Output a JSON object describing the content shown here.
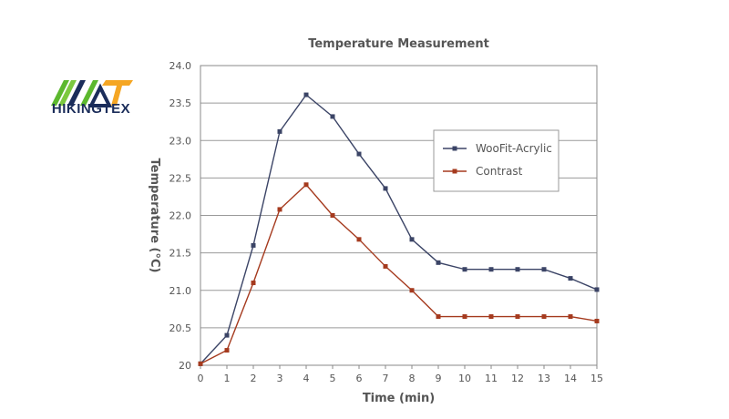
{
  "brand": {
    "name": "HIKINGTEX",
    "colors": {
      "green": "#5cb82e",
      "blue": "#1b2d5a",
      "orange": "#f5a623"
    }
  },
  "chart_data": {
    "type": "line",
    "title": "Temperature Measurement",
    "xlabel": "Time (min)",
    "ylabel": "Temperature (°C)",
    "x": [
      0,
      1,
      2,
      3,
      4,
      5,
      6,
      7,
      8,
      9,
      10,
      11,
      12,
      13,
      14,
      15
    ],
    "xlim": [
      0,
      15
    ],
    "ylim": [
      20,
      24
    ],
    "xticks": [
      "0",
      "1",
      "2",
      "3",
      "4",
      "5",
      "6",
      "7",
      "8",
      "9",
      "10",
      "11",
      "12",
      "13",
      "14",
      "15"
    ],
    "yticks": [
      "20",
      "20.5",
      "21.0",
      "21.5",
      "22.0",
      "22.5",
      "23.0",
      "23.5",
      "24.0"
    ],
    "yticks_values": [
      20,
      20.5,
      21.0,
      21.5,
      22.0,
      22.5,
      23.0,
      23.5,
      24.0
    ],
    "grid": "horizontal",
    "legend_position": "right",
    "series": [
      {
        "name": "WooFit-Acrylic",
        "color": "#3b4466",
        "values": [
          20.02,
          20.4,
          21.6,
          23.12,
          23.61,
          23.32,
          22.82,
          22.36,
          21.68,
          21.37,
          21.28,
          21.28,
          21.28,
          21.28,
          21.16,
          21.01
        ]
      },
      {
        "name": "Contrast",
        "color": "#a53a1e",
        "values": [
          20.02,
          20.2,
          21.1,
          22.08,
          22.41,
          22.0,
          21.68,
          21.32,
          21.0,
          20.65,
          20.65,
          20.65,
          20.65,
          20.65,
          20.65,
          20.59
        ]
      }
    ]
  }
}
